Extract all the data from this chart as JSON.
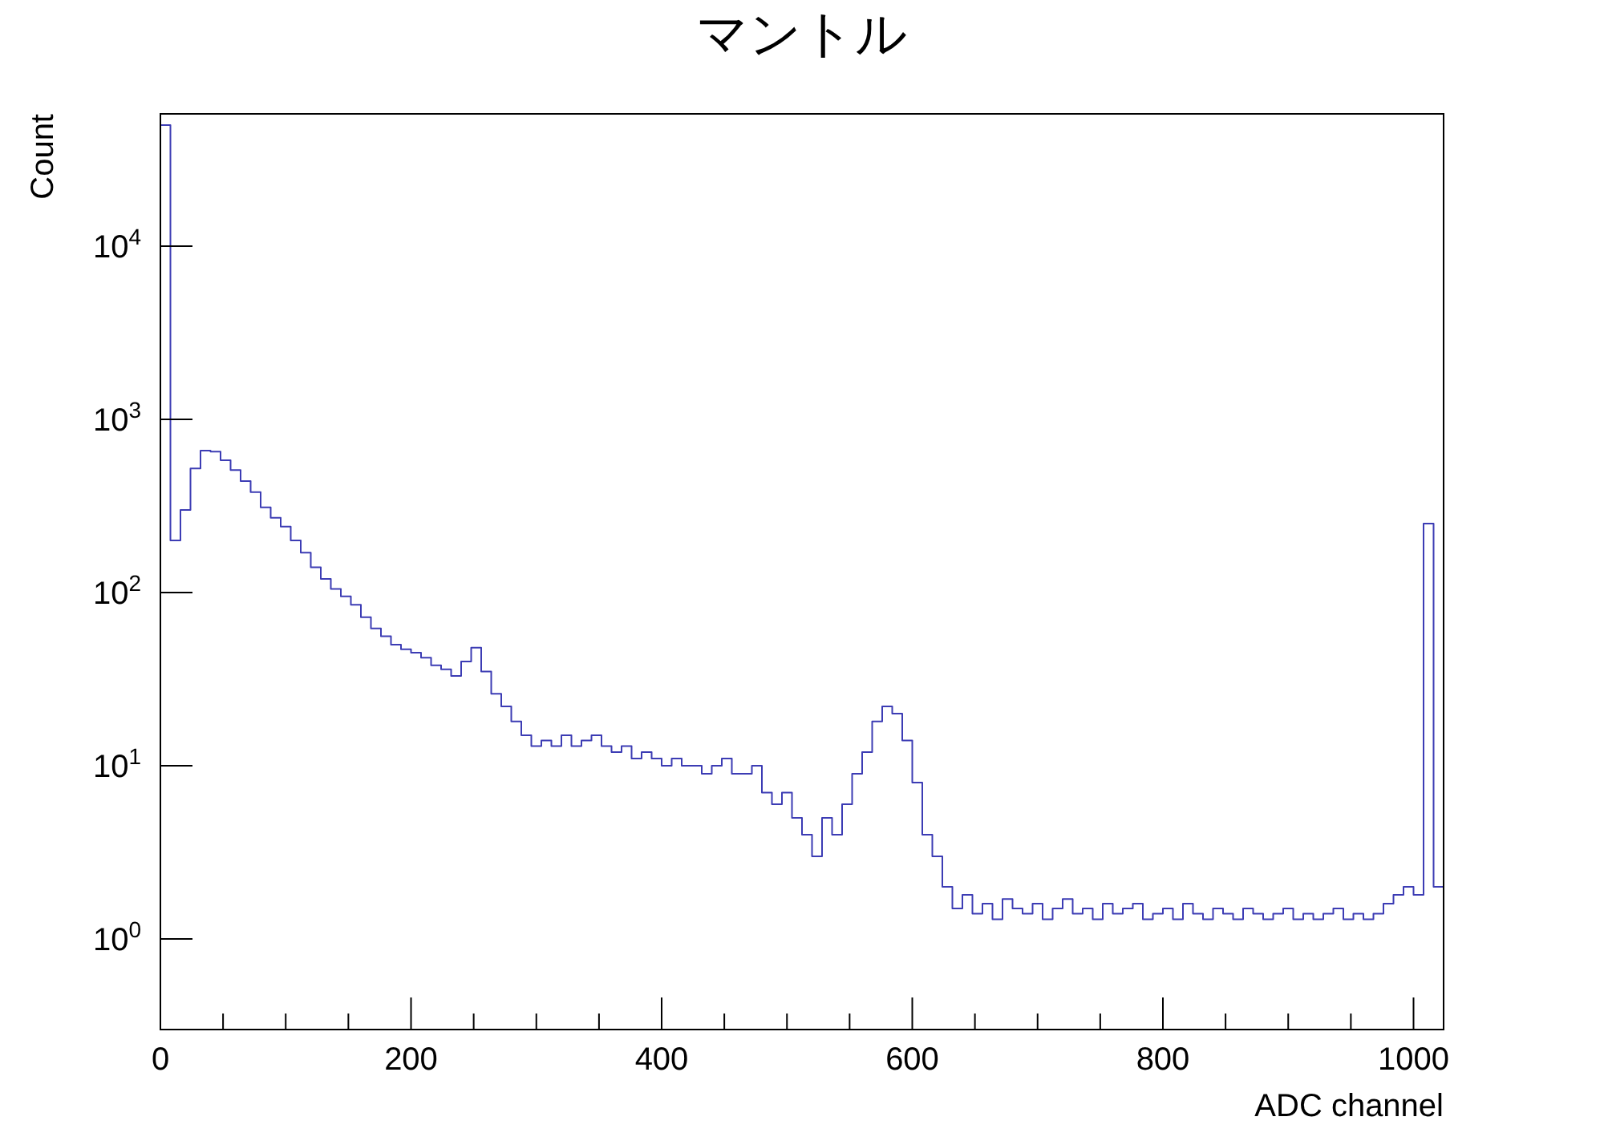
{
  "chart_data": {
    "type": "histogram",
    "title": "マントル",
    "xlabel": "ADC channel",
    "ylabel": "Count",
    "log": true,
    "grid": false,
    "color": "#3c3cb4",
    "xlim": [
      0,
      1024
    ],
    "xticks": [
      0,
      {
        "value": 50,
        "label": null
      },
      {
        "value": 100,
        "label": null
      },
      {
        "value": 150,
        "label": null
      },
      200,
      {
        "value": 250,
        "label": null
      },
      {
        "value": 300,
        "label": null
      },
      {
        "value": 350,
        "label": null
      },
      400,
      {
        "value": 450,
        "label": null
      },
      {
        "value": 500,
        "label": null
      },
      {
        "value": 550,
        "label": null
      },
      600,
      {
        "value": 650,
        "label": null
      },
      {
        "value": 700,
        "label": null
      },
      {
        "value": 750,
        "label": null
      },
      800,
      {
        "value": 850,
        "label": null
      },
      {
        "value": 900,
        "label": null
      },
      {
        "value": 950,
        "label": null
      },
      1000
    ],
    "ylim": [
      0.3,
      58000
    ],
    "yticks": [
      {
        "value": 1,
        "label": "10$^{0}$"
      },
      {
        "value": 10,
        "label": "10$^{1}$"
      },
      {
        "value": 100,
        "label": "10$^{2}$"
      },
      {
        "value": 1000,
        "label": "10$^{3}$"
      },
      {
        "value": 10000,
        "label": "10$^{4}$"
      }
    ],
    "bins": [
      0,
      8,
      16,
      24,
      32,
      40,
      48,
      56,
      64,
      72,
      80,
      88,
      96,
      104,
      112,
      120,
      128,
      136,
      144,
      152,
      160,
      168,
      176,
      184,
      192,
      200,
      208,
      216,
      224,
      232,
      240,
      248,
      256,
      264,
      272,
      280,
      288,
      296,
      304,
      312,
      320,
      328,
      336,
      344,
      352,
      360,
      368,
      376,
      384,
      392,
      400,
      408,
      416,
      424,
      432,
      440,
      448,
      456,
      464,
      472,
      480,
      488,
      496,
      504,
      512,
      520,
      528,
      536,
      544,
      552,
      560,
      568,
      576,
      584,
      592,
      600,
      608,
      616,
      624,
      632,
      640,
      648,
      656,
      664,
      672,
      680,
      688,
      696,
      704,
      712,
      720,
      728,
      736,
      744,
      752,
      760,
      768,
      776,
      784,
      792,
      800,
      808,
      816,
      824,
      832,
      840,
      848,
      856,
      864,
      872,
      880,
      888,
      896,
      904,
      912,
      920,
      928,
      936,
      944,
      952,
      960,
      968,
      976,
      984,
      992,
      1000,
      1008,
      1016,
      1024
    ],
    "values": [
      50000,
      200,
      300,
      520,
      660,
      650,
      580,
      510,
      440,
      380,
      310,
      270,
      240,
      200,
      170,
      140,
      120,
      105,
      95,
      85,
      72,
      62,
      56,
      50,
      47,
      45,
      42,
      38,
      36,
      33,
      40,
      48,
      35,
      26,
      22,
      18,
      15,
      13,
      14,
      13,
      15,
      13,
      14,
      15,
      13,
      12,
      13,
      11,
      12,
      11,
      10,
      11,
      10,
      10,
      9,
      10,
      11,
      9,
      9,
      10,
      7,
      6,
      7,
      5,
      4,
      3,
      5,
      4,
      6,
      9,
      12,
      18,
      22,
      20,
      14,
      8,
      4,
      3,
      2,
      1.5,
      1.8,
      1.4,
      1.6,
      1.3,
      1.7,
      1.5,
      1.4,
      1.6,
      1.3,
      1.5,
      1.7,
      1.4,
      1.5,
      1.3,
      1.6,
      1.4,
      1.5,
      1.6,
      1.3,
      1.4,
      1.5,
      1.3,
      1.6,
      1.4,
      1.3,
      1.5,
      1.4,
      1.3,
      1.5,
      1.4,
      1.3,
      1.4,
      1.5,
      1.3,
      1.4,
      1.3,
      1.4,
      1.5,
      1.3,
      1.4,
      1.3,
      1.4,
      1.6,
      1.8,
      2,
      1.8,
      250,
      2
    ]
  }
}
